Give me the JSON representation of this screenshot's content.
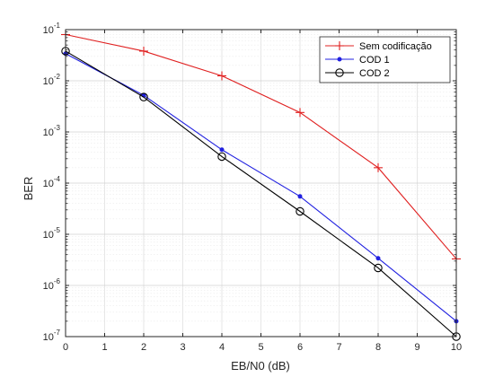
{
  "chart_data": {
    "type": "line",
    "title": "",
    "xlabel": "EB/N0 (dB)",
    "ylabel": "BER",
    "xlim": [
      0,
      10
    ],
    "ylim": [
      1e-07,
      0.1
    ],
    "yscale": "log",
    "grid": true,
    "legend_position": "top-right",
    "x_ticks": [
      "0",
      "1",
      "2",
      "3",
      "4",
      "5",
      "6",
      "7",
      "8",
      "9",
      "10"
    ],
    "y_ticks": [
      {
        "base": "10",
        "exp": "-7"
      },
      {
        "base": "10",
        "exp": "-6"
      },
      {
        "base": "10",
        "exp": "-5"
      },
      {
        "base": "10",
        "exp": "-4"
      },
      {
        "base": "10",
        "exp": "-3"
      },
      {
        "base": "10",
        "exp": "-2"
      },
      {
        "base": "10",
        "exp": "-1"
      }
    ],
    "series": [
      {
        "name": "Sem codificação",
        "color": "#e02020",
        "marker": "plus",
        "x": [
          0,
          2,
          4,
          6,
          8,
          10
        ],
        "y": [
          0.08,
          0.038,
          0.0125,
          0.0024,
          0.0002,
          3.3e-06
        ]
      },
      {
        "name": "COD 1",
        "color": "#2020e0",
        "marker": "dot",
        "x": [
          0,
          2,
          4,
          6,
          8,
          10
        ],
        "y": [
          0.034,
          0.0052,
          0.00045,
          5.5e-05,
          3.4e-06,
          2e-07
        ]
      },
      {
        "name": "COD 2",
        "color": "#000000",
        "marker": "circle",
        "x": [
          0,
          2,
          4,
          6,
          8,
          10
        ],
        "y": [
          0.038,
          0.0048,
          0.00033,
          2.8e-05,
          2.2e-06,
          1e-07
        ]
      }
    ]
  }
}
